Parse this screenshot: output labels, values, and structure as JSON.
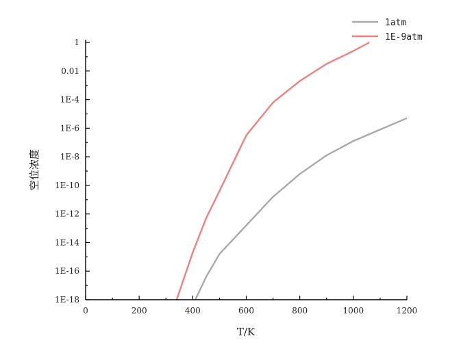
{
  "chart_data": {
    "type": "line",
    "title": "",
    "xlabel": "T/K",
    "ylabel": "空位浓度",
    "xlim": [
      0,
      1200
    ],
    "ylim_log10": [
      -18,
      0
    ],
    "y_scale": "log",
    "x_ticks": [
      0,
      200,
      400,
      600,
      800,
      1000,
      1200
    ],
    "x_tick_labels": [
      "0",
      "200",
      "400",
      "600",
      "800",
      "1000",
      "1200"
    ],
    "y_ticks_log10": [
      0,
      -2,
      -4,
      -6,
      -8,
      -10,
      -12,
      -14,
      -16,
      -18
    ],
    "y_tick_labels": [
      "1",
      "0.01",
      "1E-4",
      "1E-6",
      "1E-8",
      "1E-10",
      "1E-12",
      "1E-14",
      "1E-16",
      "1E-18"
    ],
    "grid": false,
    "legend_position": "top-right",
    "series": [
      {
        "name": "1atm",
        "color": "#a9a9a9",
        "x": [
          410,
          450,
          500,
          600,
          700,
          800,
          900,
          1000,
          1100,
          1200
        ],
        "y_log10": [
          -18,
          -16.4,
          -14.8,
          -12.8,
          -10.8,
          -9.2,
          -7.9,
          -6.9,
          -6.1,
          -5.3
        ]
      },
      {
        "name": "1E-9atm",
        "color": "#f08080",
        "x": [
          340,
          400,
          450,
          500,
          600,
          700,
          800,
          900,
          1000,
          1060
        ],
        "y_log10": [
          -18,
          -14.7,
          -12.3,
          -10.4,
          -6.5,
          -4.2,
          -2.7,
          -1.5,
          -0.6,
          0
        ]
      }
    ]
  }
}
